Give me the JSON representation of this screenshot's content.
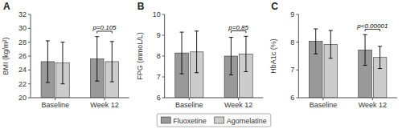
{
  "chart_data": [
    {
      "type": "bar",
      "title": "A",
      "ylabel": "BMI (kg/m²)",
      "categories": [
        "Baseline",
        "Week 12"
      ],
      "series": [
        {
          "name": "Fluoxetine",
          "color": "#999999",
          "values": [
            25.2,
            25.6
          ],
          "errors": [
            3.0,
            3.2
          ]
        },
        {
          "name": "Agomelatine",
          "color": "#cccccc",
          "values": [
            25.0,
            25.2
          ],
          "errors": [
            3.0,
            2.9
          ]
        }
      ],
      "ylim": [
        20,
        32
      ],
      "yticks": [
        20,
        22,
        24,
        26,
        28,
        30,
        32
      ],
      "grid": false,
      "annotations": [
        {
          "text": "p=0.105",
          "category": "Week 12"
        }
      ]
    },
    {
      "type": "bar",
      "title": "B",
      "ylabel": "FPG (mmoL/L)",
      "categories": [
        "Baseline",
        "Week 12"
      ],
      "series": [
        {
          "name": "Fluoxetine",
          "color": "#999999",
          "values": [
            8.15,
            8.0
          ],
          "errors": [
            1.0,
            0.9
          ]
        },
        {
          "name": "Agomelatine",
          "color": "#cccccc",
          "values": [
            8.2,
            8.1
          ],
          "errors": [
            1.0,
            0.85
          ]
        }
      ],
      "ylim": [
        6,
        10
      ],
      "yticks": [
        6,
        7,
        8,
        9,
        10
      ],
      "grid": false,
      "legend": "bottom",
      "annotations": [
        {
          "text": "p=0.85",
          "category": "Week 12"
        }
      ]
    },
    {
      "type": "bar",
      "title": "C",
      "ylabel": "HbA1c (%)",
      "categories": [
        "Baseline",
        "Week 12"
      ],
      "series": [
        {
          "name": "Fluoxetine",
          "color": "#999999",
          "values": [
            8.03,
            7.72
          ],
          "errors": [
            0.45,
            0.55
          ]
        },
        {
          "name": "Agomelatine",
          "color": "#cccccc",
          "values": [
            7.92,
            7.45
          ],
          "errors": [
            0.5,
            0.4
          ]
        }
      ],
      "ylim": [
        6,
        9
      ],
      "yticks": [
        6,
        7,
        8,
        9
      ],
      "grid": false,
      "annotations": [
        {
          "text": "p<0.00001",
          "category": "Week 12"
        }
      ]
    }
  ]
}
